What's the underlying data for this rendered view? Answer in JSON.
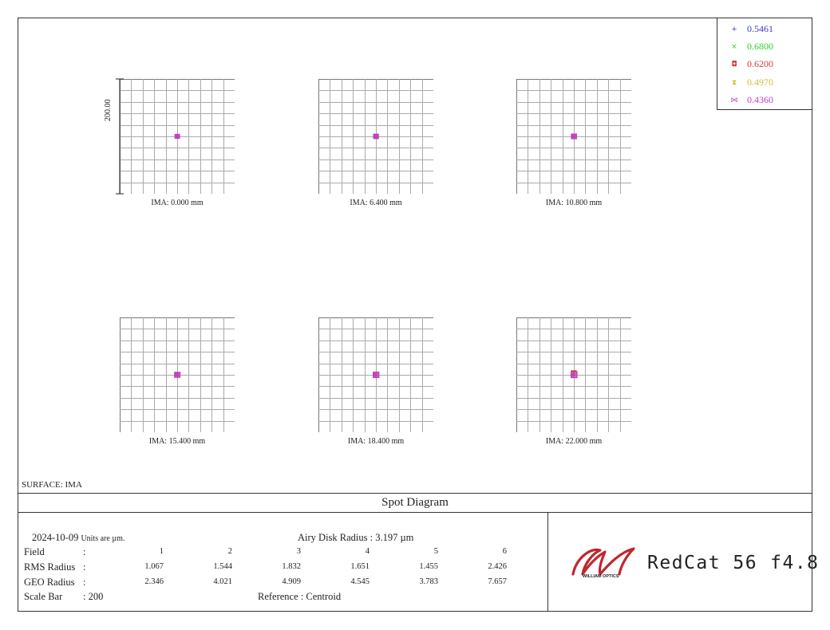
{
  "legend": [
    {
      "label": "0.5461",
      "color": "#3b3bd6",
      "symbol": "+"
    },
    {
      "label": "0.6800",
      "color": "#2bd12b",
      "symbol": "×"
    },
    {
      "label": "0.6200",
      "color": "#d63b3b",
      "symbol": "◘"
    },
    {
      "label": "0.4970",
      "color": "#c9c23a",
      "symbol": "⧗"
    },
    {
      "label": "0.4360",
      "color": "#c83bc8",
      "symbol": "⋈"
    }
  ],
  "scale_bar_label": "200.00",
  "plots": [
    {
      "label": "IMA: 0.000 mm"
    },
    {
      "label": "IMA: 6.400 mm"
    },
    {
      "label": "IMA: 10.800 mm"
    },
    {
      "label": "IMA: 15.400 mm"
    },
    {
      "label": "IMA: 18.400 mm"
    },
    {
      "label": "IMA: 22.000 mm"
    }
  ],
  "surface": "SURFACE: IMA",
  "title": "Spot Diagram",
  "info": {
    "date": "2024-10-09",
    "units": "Units are µm.",
    "airy": "Airy Disk Radius : 3.197 µm",
    "field_label": "Field",
    "rms_label": "RMS Radius",
    "geo_label": "GEO Radius",
    "scale_label": "Scale Bar",
    "scale_value": ": 200",
    "reference": "Reference  :  Centroid",
    "colon": ":",
    "fields": [
      "1",
      "2",
      "3",
      "4",
      "5",
      "6"
    ],
    "rms": [
      "1.067",
      "1.544",
      "1.832",
      "1.651",
      "1.455",
      "2.426"
    ],
    "geo": [
      "2.346",
      "4.021",
      "4.909",
      "4.545",
      "3.783",
      "7.657"
    ]
  },
  "brand": {
    "name": "RedCat 56",
    "fratio": "f4.8",
    "logo_text": "WILLIAM OPTICS",
    "logo_color": "#c0272d"
  }
}
